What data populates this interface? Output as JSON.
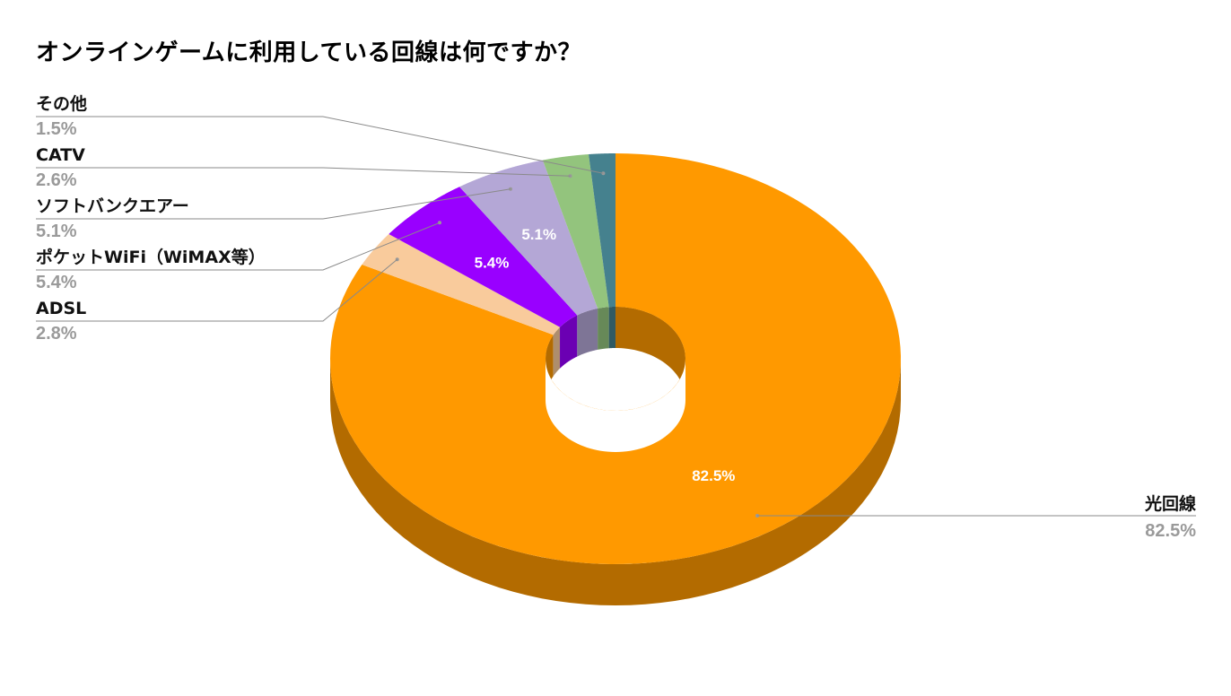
{
  "chart_data": {
    "type": "pie",
    "style": "3d-donut",
    "title": "オンラインゲームに利用している回線は何ですか？",
    "series": [
      {
        "name": "光回線",
        "value": 82.5,
        "label": "82.5%",
        "color": "#ff9900",
        "side_color": "#b36b00"
      },
      {
        "name": "ADSL",
        "value": 2.8,
        "label": "2.8%",
        "color": "#f9cb9c",
        "side_color": "#ae8e6d"
      },
      {
        "name": "ポケットWiFi（WiMAX等）",
        "value": 5.4,
        "label": "5.4%",
        "color": "#9900ff",
        "side_color": "#6b00b3"
      },
      {
        "name": "ソフトバンクエアー",
        "value": 5.1,
        "label": "5.1%",
        "color": "#b4a7d6",
        "side_color": "#7e7596"
      },
      {
        "name": "CATV",
        "value": 2.6,
        "label": "2.6%",
        "color": "#93c47d",
        "side_color": "#678958"
      },
      {
        "name": "その他",
        "value": 1.5,
        "label": "1.5%",
        "color": "#45818e",
        "side_color": "#305a63"
      }
    ],
    "inner_labels": [
      "82.5%",
      "5.4%",
      "5.1%"
    ],
    "legend": "callouts"
  }
}
